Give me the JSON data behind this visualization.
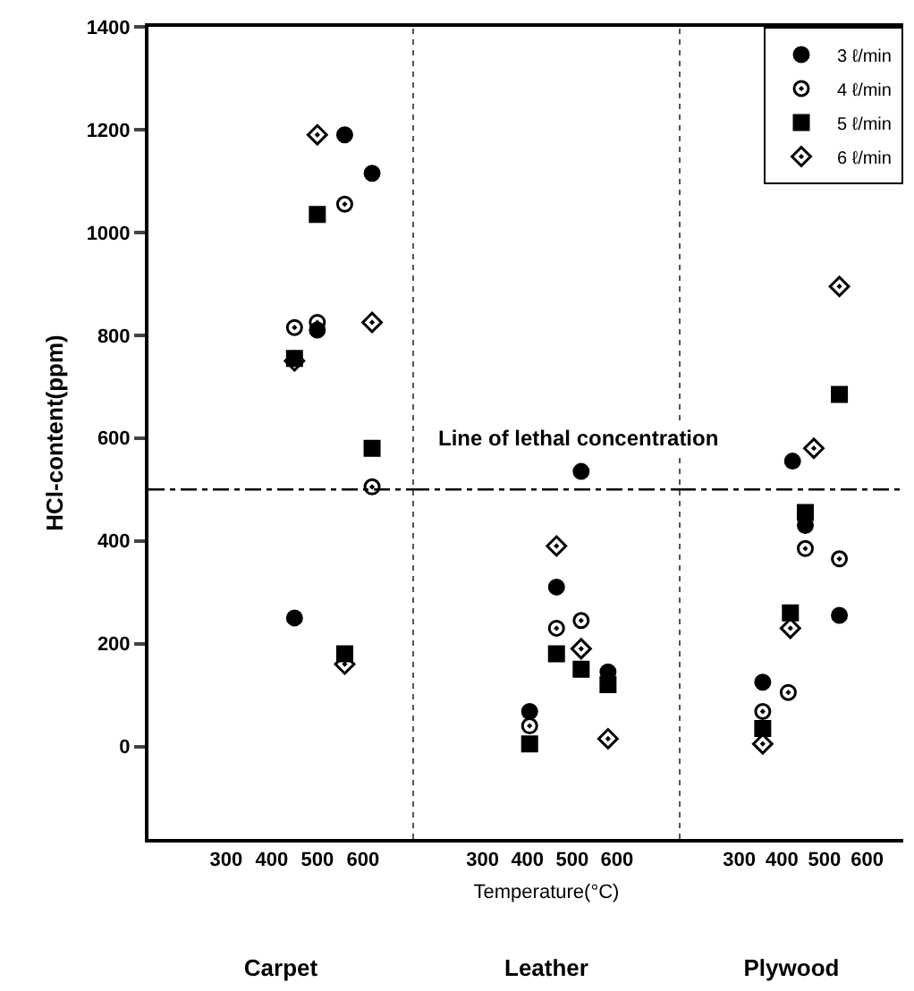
{
  "chart_data": [
    {
      "type": "scatter",
      "title": "Carpet",
      "ylabel": "HCl-content(ppm)",
      "xlim": [
        130,
        710
      ],
      "xticks": [
        300,
        400,
        500,
        600
      ],
      "ylim": [
        -180,
        1400
      ],
      "yticks": [
        0,
        200,
        400,
        600,
        800,
        1000,
        1200,
        1400
      ],
      "grid": false,
      "legend": false,
      "ref_lines": [
        {
          "axis": "y",
          "value": 500,
          "line_style": "dashdot",
          "color": "#000000"
        }
      ],
      "series": [
        {
          "color": "#000000",
          "marker": "circle",
          "x": [
            560,
            620,
            500,
            450
          ],
          "values": [
            1190,
            1115,
            810,
            250
          ]
        },
        {
          "color": "#000000",
          "marker": "circle-open",
          "x": [
            560,
            450,
            500,
            620
          ],
          "values": [
            1055,
            815,
            825,
            505
          ]
        },
        {
          "color": "#000000",
          "marker": "square",
          "x": [
            500,
            450,
            620,
            560
          ],
          "values": [
            1035,
            755,
            580,
            180
          ]
        },
        {
          "color": "#000000",
          "marker": "diamond-open",
          "x": [
            500,
            620,
            450,
            560
          ],
          "values": [
            1190,
            825,
            750,
            160
          ]
        }
      ]
    },
    {
      "type": "scatter",
      "title": "Leather",
      "xlabel": "Temperature(°C)",
      "xlim": [
        145,
        740
      ],
      "xticks": [
        300,
        400,
        500,
        600
      ],
      "ylim": [
        -180,
        1400
      ],
      "tick_labels": "x",
      "grid": false,
      "legend": false,
      "ref_lines": [
        {
          "axis": "y",
          "value": 500,
          "line_style": "dashdot",
          "color": "#000000",
          "label": "Line of lethal concentration"
        }
      ],
      "series": [
        {
          "color": "#000000",
          "marker": "circle",
          "x": [
            520,
            465,
            580,
            405
          ],
          "values": [
            535,
            310,
            145,
            68
          ]
        },
        {
          "color": "#000000",
          "marker": "circle-open",
          "x": [
            465,
            520,
            405
          ],
          "values": [
            230,
            245,
            40
          ]
        },
        {
          "color": "#000000",
          "marker": "square",
          "x": [
            465,
            520,
            580,
            405
          ],
          "values": [
            180,
            150,
            120,
            5
          ]
        },
        {
          "color": "#000000",
          "marker": "diamond-open",
          "x": [
            465,
            520,
            580
          ],
          "values": [
            390,
            190,
            15
          ]
        }
      ]
    },
    {
      "type": "scatter",
      "title": "Plywood",
      "xlim": [
        160,
        685
      ],
      "xticks": [
        300,
        400,
        500,
        600
      ],
      "ylim": [
        -180,
        1400
      ],
      "tick_labels": "x",
      "grid": false,
      "legend": "top right",
      "ref_lines": [
        {
          "axis": "y",
          "value": 500,
          "line_style": "dashdot",
          "color": "#000000"
        }
      ],
      "series": [
        {
          "name": "3 ℓ/min",
          "color": "#000000",
          "marker": "circle",
          "x": [
            425,
            455,
            535,
            355
          ],
          "values": [
            555,
            430,
            255,
            125
          ]
        },
        {
          "name": "4 ℓ/min",
          "color": "#000000",
          "marker": "circle-open",
          "x": [
            455,
            535,
            415,
            355
          ],
          "values": [
            385,
            365,
            105,
            68
          ]
        },
        {
          "name": "5 ℓ/min",
          "color": "#000000",
          "marker": "square",
          "x": [
            535,
            455,
            420,
            355
          ],
          "values": [
            685,
            455,
            260,
            35
          ]
        },
        {
          "name": "6 ℓ/min",
          "color": "#000000",
          "marker": "diamond-open",
          "x": [
            535,
            475,
            420,
            355
          ],
          "values": [
            895,
            580,
            230,
            5
          ]
        }
      ]
    }
  ]
}
